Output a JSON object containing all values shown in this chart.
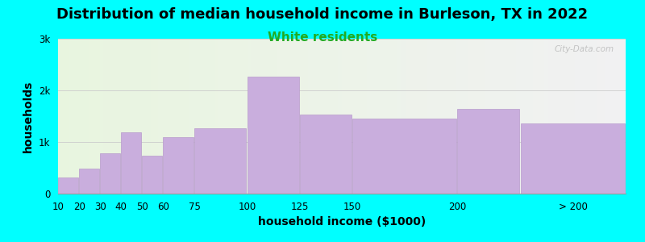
{
  "title": "Distribution of median household income in Burleson, TX in 2022",
  "subtitle": "White residents",
  "xlabel": "household income ($1000)",
  "ylabel": "households",
  "background_color": "#00FFFF",
  "bar_color": "#c9aedd",
  "bar_edge_color": "#b89ccc",
  "categories": [
    "10",
    "20",
    "30",
    "40",
    "50",
    "60",
    "75",
    "100",
    "125",
    "150",
    "200",
    "> 200"
  ],
  "bin_lefts": [
    10,
    20,
    30,
    40,
    50,
    60,
    75,
    100,
    125,
    150,
    200,
    230
  ],
  "bin_widths": [
    10,
    10,
    10,
    10,
    10,
    15,
    25,
    25,
    25,
    50,
    30,
    50
  ],
  "values": [
    320,
    490,
    780,
    1180,
    730,
    1090,
    1260,
    2260,
    1530,
    1450,
    1640,
    1360
  ],
  "ylim": [
    0,
    3000
  ],
  "yticks": [
    0,
    1000,
    2000,
    3000
  ],
  "ytick_labels": [
    "0",
    "1k",
    "2k",
    "3k"
  ],
  "xlim_left": 10,
  "xlim_right": 280,
  "xtick_positions": [
    10,
    20,
    30,
    40,
    50,
    60,
    75,
    100,
    125,
    150,
    200,
    255
  ],
  "xtick_labels": [
    "10",
    "20",
    "30",
    "40",
    "50",
    "60",
    "75",
    "100",
    "125",
    "150",
    "200",
    "> 200"
  ],
  "title_fontsize": 13,
  "subtitle_fontsize": 11,
  "subtitle_color": "#22aa22",
  "axis_label_fontsize": 10,
  "tick_fontsize": 8.5,
  "watermark": "City-Data.com"
}
